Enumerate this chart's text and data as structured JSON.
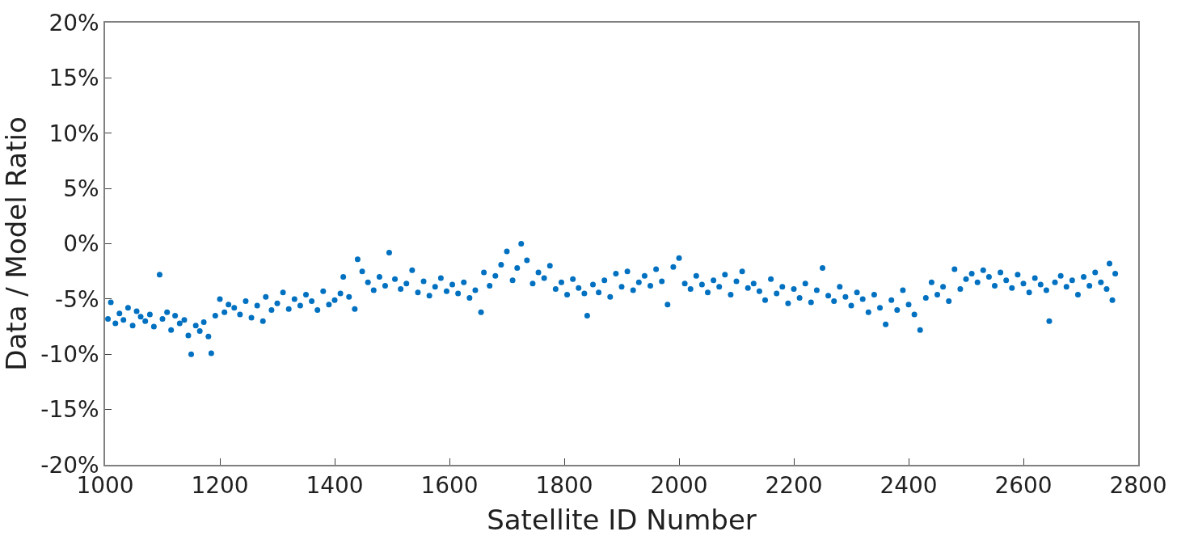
{
  "chart_data": {
    "type": "scatter",
    "xlabel": "Satellite ID Number",
    "ylabel": "Data / Model Ratio",
    "xlim": [
      1000,
      2800
    ],
    "xticks": [
      1000,
      1200,
      1400,
      1600,
      1800,
      2000,
      2200,
      2400,
      2600,
      2800
    ],
    "ylim": [
      -20,
      20
    ],
    "yticks": [
      {
        "value": -20,
        "label": "-20%"
      },
      {
        "value": -15,
        "label": "-15%"
      },
      {
        "value": -10,
        "label": "-10%"
      },
      {
        "value": -5,
        "label": "-5%"
      },
      {
        "value": 0,
        "label": "0%"
      },
      {
        "value": 5,
        "label": "5%"
      },
      {
        "value": 10,
        "label": "10%"
      },
      {
        "value": 15,
        "label": "15%"
      },
      {
        "value": 20,
        "label": "20%"
      }
    ],
    "marker": "circle",
    "series": [
      {
        "color": "#0070c0",
        "x": [
          1005,
          1010,
          1018,
          1025,
          1032,
          1040,
          1048,
          1055,
          1062,
          1070,
          1078,
          1085,
          1095,
          1100,
          1108,
          1115,
          1122,
          1130,
          1138,
          1145,
          1150,
          1158,
          1165,
          1172,
          1180,
          1185,
          1192,
          1200,
          1208,
          1215,
          1225,
          1235,
          1245,
          1255,
          1265,
          1275,
          1280,
          1290,
          1300,
          1310,
          1320,
          1330,
          1340,
          1350,
          1360,
          1370,
          1380,
          1390,
          1400,
          1410,
          1415,
          1425,
          1435,
          1440,
          1448,
          1458,
          1468,
          1478,
          1488,
          1495,
          1505,
          1515,
          1525,
          1535,
          1545,
          1555,
          1565,
          1575,
          1585,
          1595,
          1605,
          1615,
          1625,
          1635,
          1645,
          1655,
          1660,
          1670,
          1680,
          1690,
          1700,
          1710,
          1718,
          1725,
          1735,
          1745,
          1755,
          1765,
          1775,
          1785,
          1795,
          1805,
          1815,
          1825,
          1835,
          1840,
          1850,
          1860,
          1870,
          1880,
          1890,
          1900,
          1910,
          1920,
          1930,
          1940,
          1950,
          1960,
          1970,
          1980,
          1990,
          2000,
          2010,
          2020,
          2030,
          2040,
          2050,
          2060,
          2070,
          2080,
          2090,
          2100,
          2110,
          2120,
          2130,
          2140,
          2150,
          2160,
          2170,
          2180,
          2190,
          2200,
          2210,
          2220,
          2230,
          2240,
          2250,
          2260,
          2270,
          2280,
          2290,
          2300,
          2310,
          2320,
          2330,
          2340,
          2350,
          2360,
          2370,
          2380,
          2390,
          2400,
          2410,
          2420,
          2430,
          2440,
          2450,
          2460,
          2470,
          2480,
          2490,
          2500,
          2510,
          2520,
          2530,
          2540,
          2550,
          2560,
          2570,
          2580,
          2590,
          2600,
          2610,
          2620,
          2630,
          2640,
          2645,
          2655,
          2665,
          2675,
          2685,
          2695,
          2705,
          2715,
          2725,
          2735,
          2745,
          2750,
          2755,
          2760
        ],
        "values": [
          -6.8,
          -5.3,
          -7.2,
          -6.3,
          -6.9,
          -5.8,
          -7.4,
          -6.1,
          -6.6,
          -7.0,
          -6.4,
          -7.5,
          -2.8,
          -6.8,
          -6.2,
          -7.8,
          -6.5,
          -7.2,
          -6.9,
          -8.3,
          -10.0,
          -7.4,
          -7.9,
          -7.1,
          -8.4,
          -9.9,
          -6.5,
          -5.0,
          -6.2,
          -5.5,
          -5.8,
          -6.4,
          -5.2,
          -6.7,
          -5.6,
          -7.0,
          -4.8,
          -6.0,
          -5.4,
          -4.4,
          -5.9,
          -5.0,
          -5.6,
          -4.6,
          -5.2,
          -6.0,
          -4.3,
          -5.5,
          -5.1,
          -4.5,
          -3.0,
          -4.8,
          -5.9,
          -1.4,
          -2.5,
          -3.5,
          -4.2,
          -3.0,
          -3.8,
          -0.8,
          -3.2,
          -4.1,
          -3.6,
          -2.4,
          -4.4,
          -3.4,
          -4.7,
          -3.9,
          -3.1,
          -4.3,
          -3.7,
          -4.5,
          -3.5,
          -4.9,
          -4.2,
          -6.2,
          -2.6,
          -3.8,
          -2.9,
          -1.9,
          -0.7,
          -3.3,
          -2.2,
          0.0,
          -1.5,
          -3.6,
          -2.6,
          -3.1,
          -2.0,
          -4.1,
          -3.5,
          -4.6,
          -3.2,
          -4.0,
          -4.5,
          -6.5,
          -3.7,
          -4.4,
          -3.3,
          -4.8,
          -2.7,
          -3.9,
          -2.5,
          -4.2,
          -3.5,
          -2.9,
          -3.8,
          -2.3,
          -3.4,
          -5.5,
          -2.1,
          -1.3,
          -3.6,
          -4.1,
          -2.9,
          -3.7,
          -4.4,
          -3.3,
          -3.9,
          -2.8,
          -4.6,
          -3.4,
          -2.5,
          -4.0,
          -3.6,
          -4.3,
          -5.1,
          -3.2,
          -4.5,
          -3.9,
          -5.4,
          -4.1,
          -4.9,
          -3.6,
          -5.3,
          -4.2,
          -2.2,
          -4.7,
          -5.2,
          -3.9,
          -4.8,
          -5.6,
          -4.4,
          -5.0,
          -6.2,
          -4.6,
          -5.8,
          -7.3,
          -5.1,
          -6.0,
          -4.2,
          -5.5,
          -6.4,
          -7.8,
          -4.9,
          -3.5,
          -4.6,
          -3.9,
          -5.2,
          -2.3,
          -4.1,
          -3.2,
          -2.7,
          -3.5,
          -2.4,
          -3.0,
          -3.8,
          -2.6,
          -3.3,
          -4.0,
          -2.8,
          -3.6,
          -4.4,
          -3.1,
          -3.7,
          -4.2,
          -7.0,
          -3.5,
          -2.9,
          -3.9,
          -3.3,
          -4.6,
          -3.0,
          -3.8,
          -2.6,
          -3.5,
          -4.1,
          -1.8,
          -5.1,
          -2.7
        ]
      }
    ]
  }
}
